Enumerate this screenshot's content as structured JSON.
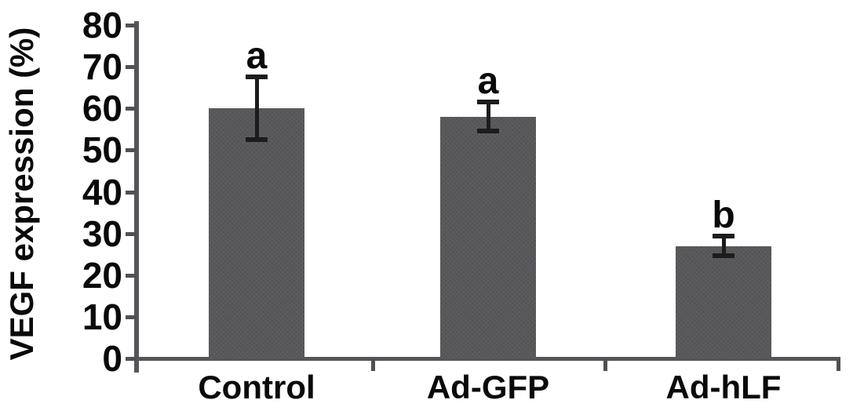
{
  "chart_data": {
    "type": "bar",
    "title": "",
    "ylabel": "VEGF expression (%)",
    "xlabel": "",
    "ylim": [
      0,
      80
    ],
    "yticks": [
      0,
      10,
      20,
      30,
      40,
      50,
      60,
      70,
      80
    ],
    "grid": false,
    "legend_position": "none",
    "categories": [
      "Control",
      "Ad-GFP",
      "Ad-hLF"
    ],
    "values": [
      60,
      58,
      27
    ],
    "errors": [
      7.5,
      3.5,
      2.3
    ],
    "sig_labels": [
      "a",
      "a",
      "b"
    ],
    "bar_color": "#57575a",
    "axis_color": "#56565a",
    "error_bar_color": "#1c1c1c",
    "text_color": "#0a0a0a"
  }
}
